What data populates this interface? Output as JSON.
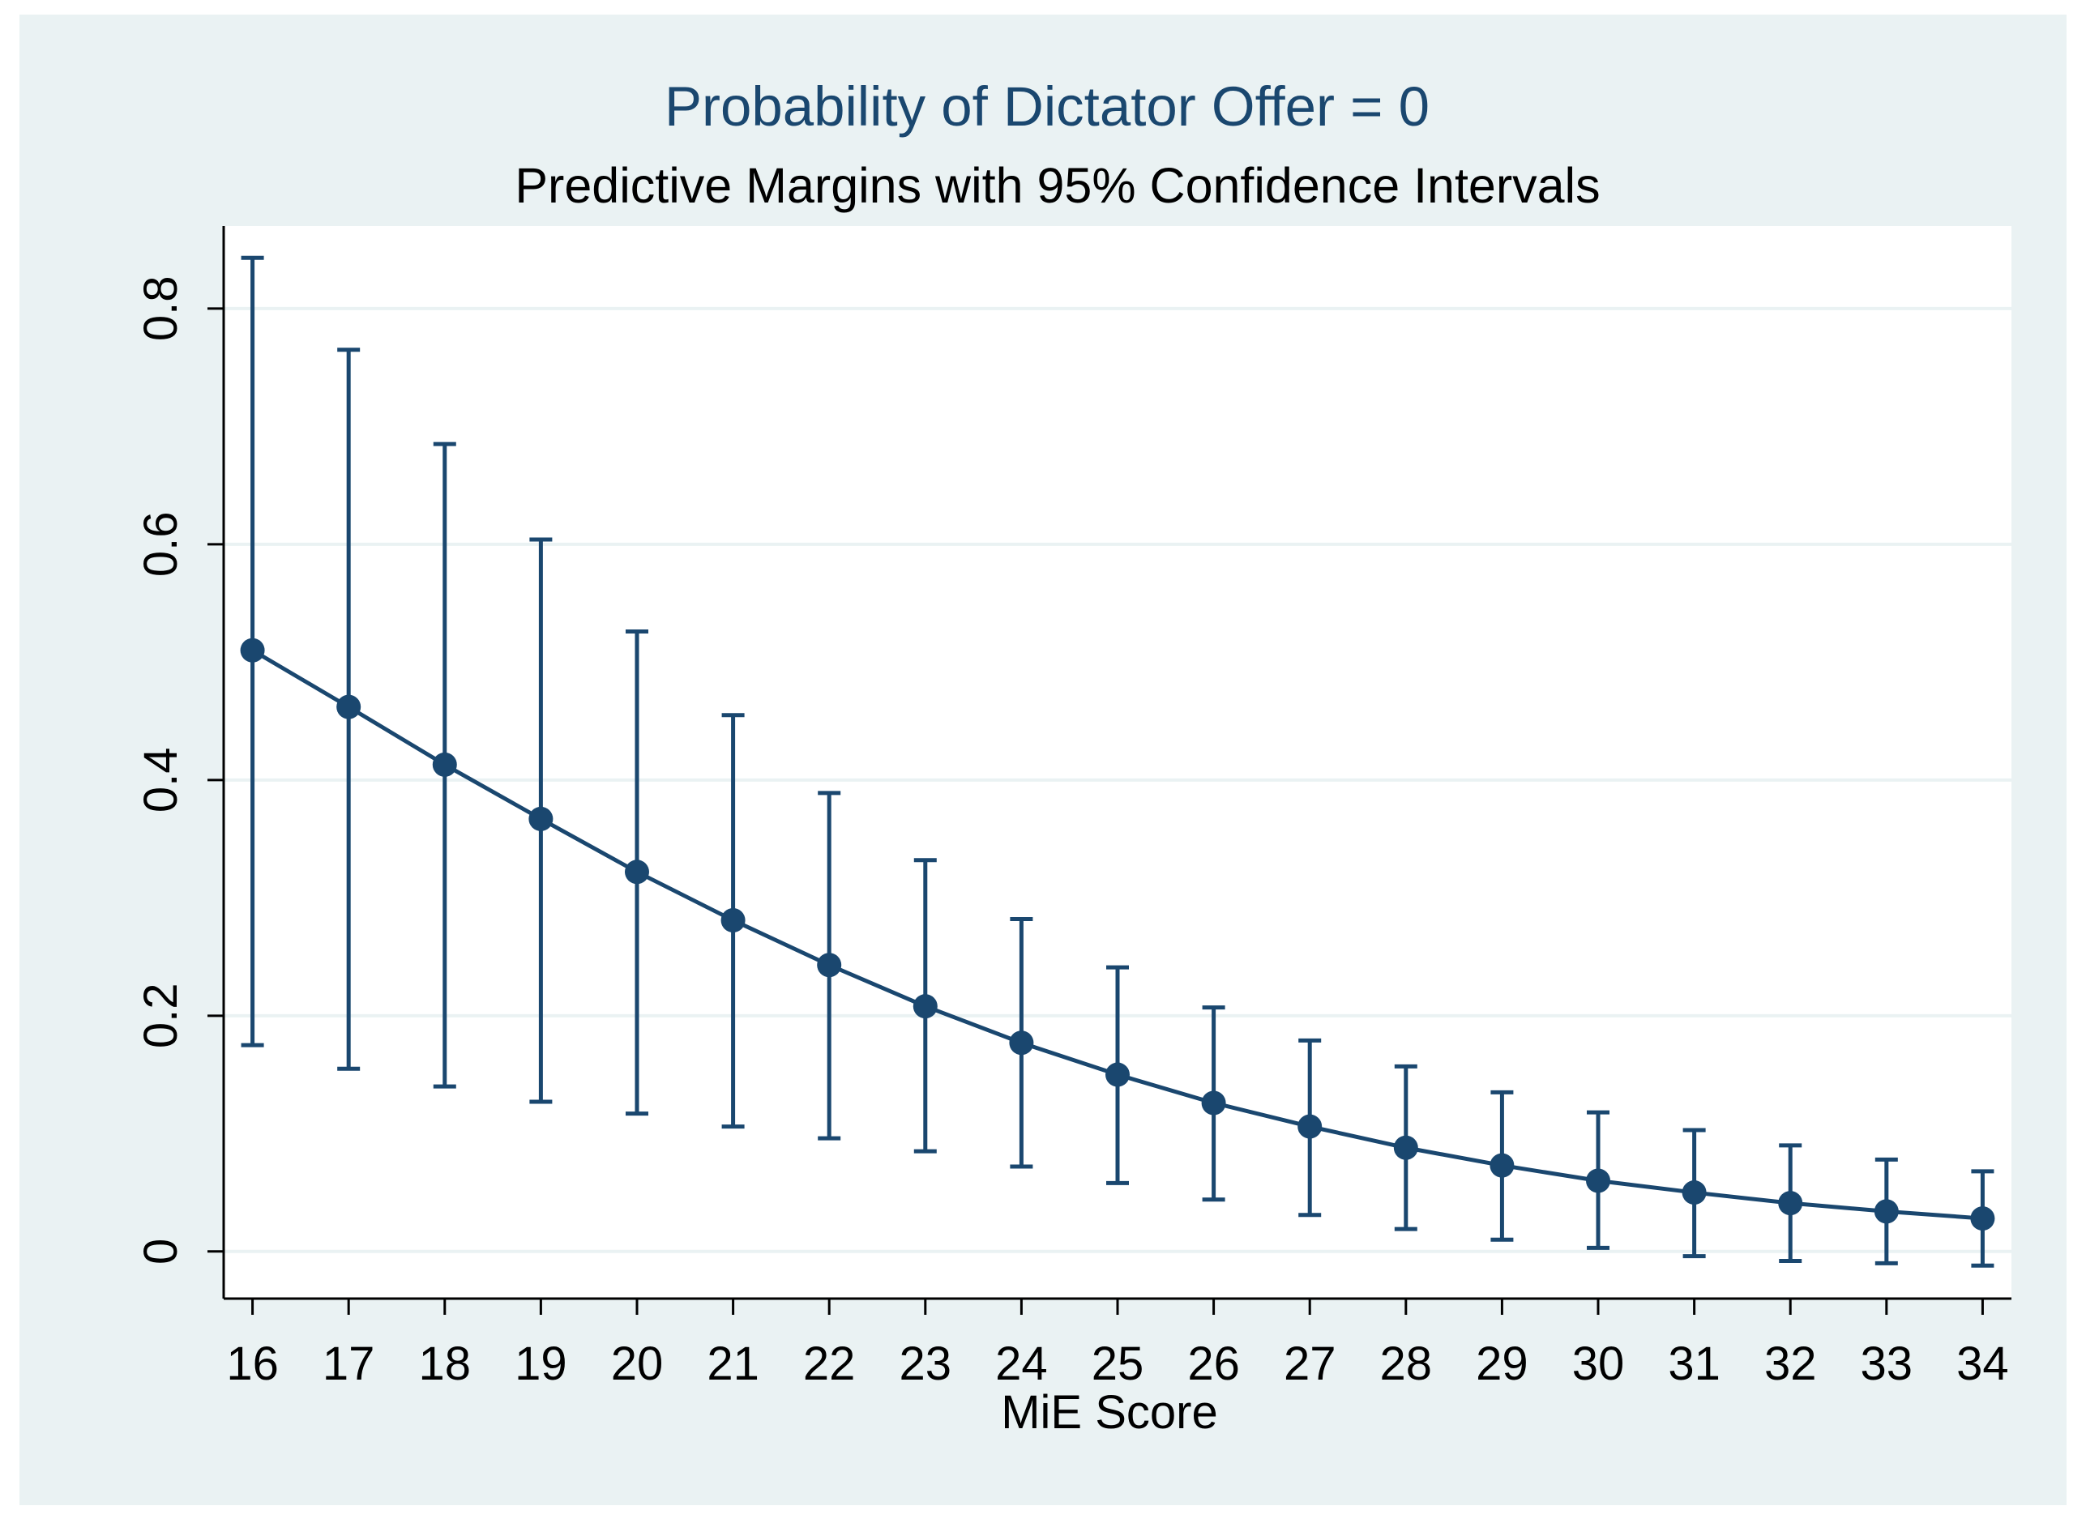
{
  "chart_data": {
    "type": "line",
    "title": "Probability of Dictator Offer = 0",
    "subtitle": "Predictive Margins with 95% Confidence Intervals",
    "xlabel": "MiE Score",
    "ylabel": "",
    "x": [
      16,
      17,
      18,
      19,
      20,
      21,
      22,
      23,
      24,
      25,
      26,
      27,
      28,
      29,
      30,
      31,
      32,
      33,
      34
    ],
    "x_tick_labels": [
      "16",
      "17",
      "18",
      "19",
      "20",
      "21",
      "22",
      "23",
      "24",
      "25",
      "26",
      "27",
      "28",
      "29",
      "30",
      "31",
      "32",
      "33",
      "34"
    ],
    "y_ticks": [
      0,
      0.2,
      0.4,
      0.6,
      0.8
    ],
    "y_tick_labels": [
      "0",
      "0.2",
      "0.4",
      "0.6",
      "0.8"
    ],
    "xlim": [
      15.7,
      34.3
    ],
    "ylim": [
      -0.04,
      0.87
    ],
    "grid": true,
    "series": [
      {
        "name": "Predictive margin",
        "values": [
          0.51,
          0.462,
          0.413,
          0.367,
          0.322,
          0.281,
          0.243,
          0.208,
          0.177,
          0.15,
          0.126,
          0.106,
          0.088,
          0.073,
          0.06,
          0.05,
          0.041,
          0.034,
          0.028
        ],
        "ci_lower": [
          0.175,
          0.155,
          0.14,
          0.127,
          0.117,
          0.106,
          0.096,
          0.085,
          0.072,
          0.058,
          0.044,
          0.031,
          0.019,
          0.01,
          0.003,
          -0.004,
          -0.008,
          -0.01,
          -0.012
        ],
        "ci_upper": [
          0.843,
          0.765,
          0.685,
          0.604,
          0.526,
          0.455,
          0.389,
          0.332,
          0.282,
          0.241,
          0.207,
          0.179,
          0.157,
          0.135,
          0.118,
          0.103,
          0.09,
          0.078,
          0.068
        ]
      }
    ],
    "colors": {
      "outer_background": "#eaf2f3",
      "plot_background": "#ffffff",
      "gridline": "#eaf2f3",
      "series": "#1a476f",
      "title": "#1a476f",
      "text": "#000000"
    }
  }
}
